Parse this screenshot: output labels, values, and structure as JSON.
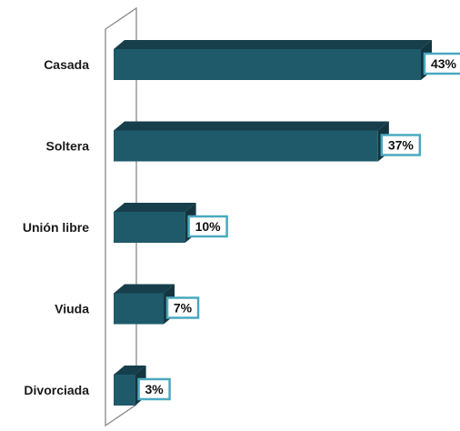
{
  "chart_data": {
    "type": "bar",
    "orientation": "horizontal",
    "style": "3d",
    "categories": [
      "Casada",
      "Soltera",
      "Unión libre",
      "Viuda",
      "Divorciada"
    ],
    "values": [
      43,
      37,
      10,
      7,
      3
    ],
    "value_suffix": "%",
    "title": "",
    "xlabel": "",
    "ylabel": "",
    "xlim": [
      0,
      43
    ],
    "grid": false,
    "legend": "none",
    "colors": {
      "bar_front": "#1f5a6a",
      "bar_top": "#163f4b",
      "bar_side": "#12353f",
      "label_border": "#4aa8c0",
      "wall": "#8a8a8a"
    }
  }
}
